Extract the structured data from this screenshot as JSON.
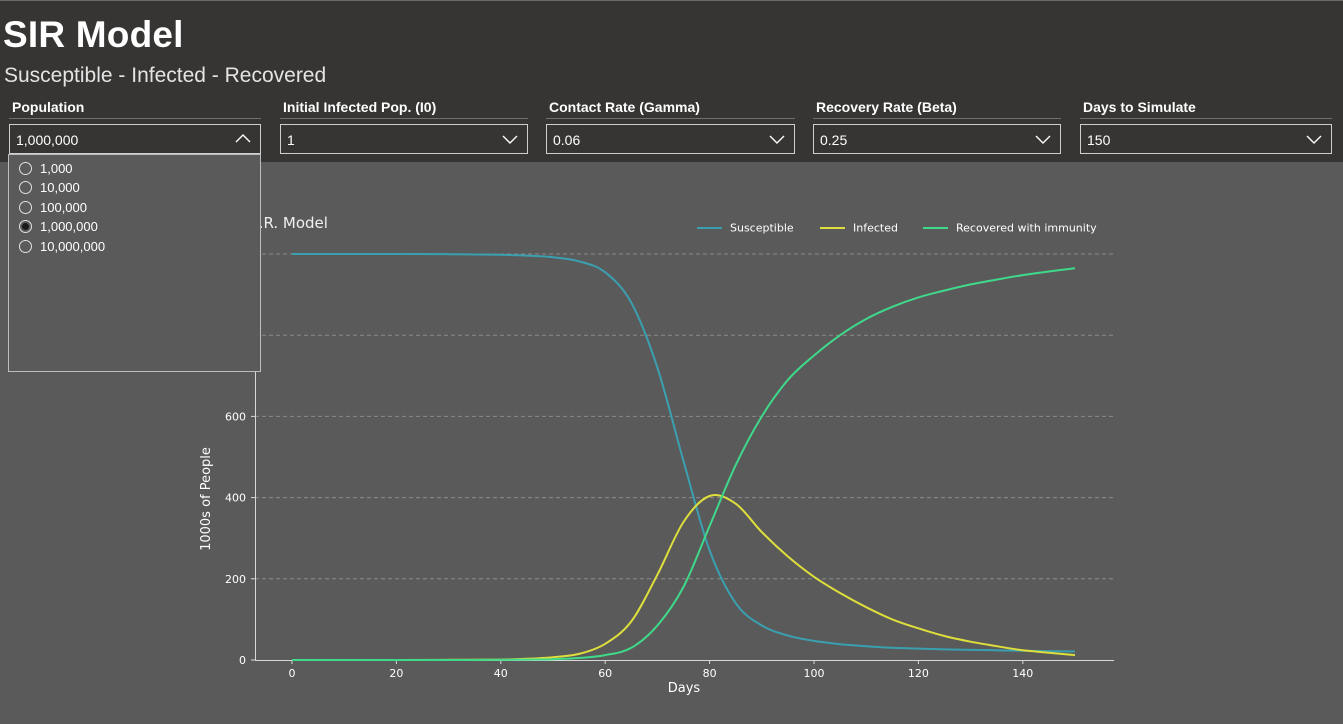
{
  "header": {
    "title": "SIR Model",
    "subtitle": "Susceptible - Infected - Recovered"
  },
  "slicers": [
    {
      "title": "Population",
      "value": "1,000,000"
    },
    {
      "title": "Initial Infected Pop. (I0)",
      "value": "1"
    },
    {
      "title": "Contact Rate (Gamma)",
      "value": "0.06"
    },
    {
      "title": "Recovery Rate (Beta)",
      "value": "0.25"
    },
    {
      "title": "Days to Simulate",
      "value": "150"
    }
  ],
  "population_dropdown": {
    "options": [
      "1,000",
      "10,000",
      "100,000",
      "1,000,000",
      "10,000,000"
    ],
    "selected": "1,000,000"
  },
  "colors": {
    "susceptible": "#3aa0b0",
    "infected": "#dede3c",
    "recovered": "#3fd98a",
    "background": "#5a5a5a",
    "header": "#363533"
  },
  "chart_data": {
    "type": "line",
    "title": "S.I.R. Model",
    "xlabel": "Days",
    "ylabel": "1000s of People",
    "xlim": [
      0,
      150
    ],
    "ylim": [
      0,
      1000
    ],
    "xticks": [
      0,
      20,
      40,
      60,
      80,
      100,
      120,
      140
    ],
    "yticks": [
      0,
      200,
      400,
      600
    ],
    "grid": true,
    "legend_position": "top-right",
    "x": [
      0,
      10,
      20,
      30,
      40,
      45,
      50,
      55,
      60,
      65,
      70,
      75,
      80,
      85,
      90,
      95,
      100,
      105,
      110,
      115,
      120,
      125,
      130,
      135,
      140,
      145,
      150
    ],
    "series": [
      {
        "name": "Susceptible",
        "values": [
          1000,
          1000,
          1000,
          999.5,
          998,
          996,
          992,
          982,
          955,
          880,
          720,
          490,
          270,
          140,
          85,
          60,
          47,
          39,
          34,
          30,
          28,
          26,
          25,
          24,
          23,
          22,
          21
        ]
      },
      {
        "name": "Infected",
        "values": [
          0,
          0,
          0,
          0.5,
          1,
          3,
          7,
          15,
          40,
          95,
          210,
          340,
          404,
          385,
          315,
          255,
          205,
          165,
          130,
          100,
          78,
          59,
          45,
          34,
          24,
          18,
          12
        ]
      },
      {
        "name": "Recovered with immunity",
        "values": [
          0,
          0,
          0,
          0,
          0.5,
          1,
          2,
          5,
          12,
          30,
          85,
          180,
          330,
          480,
          600,
          690,
          750,
          800,
          840,
          870,
          893,
          910,
          925,
          937,
          948,
          957,
          965
        ]
      }
    ]
  }
}
